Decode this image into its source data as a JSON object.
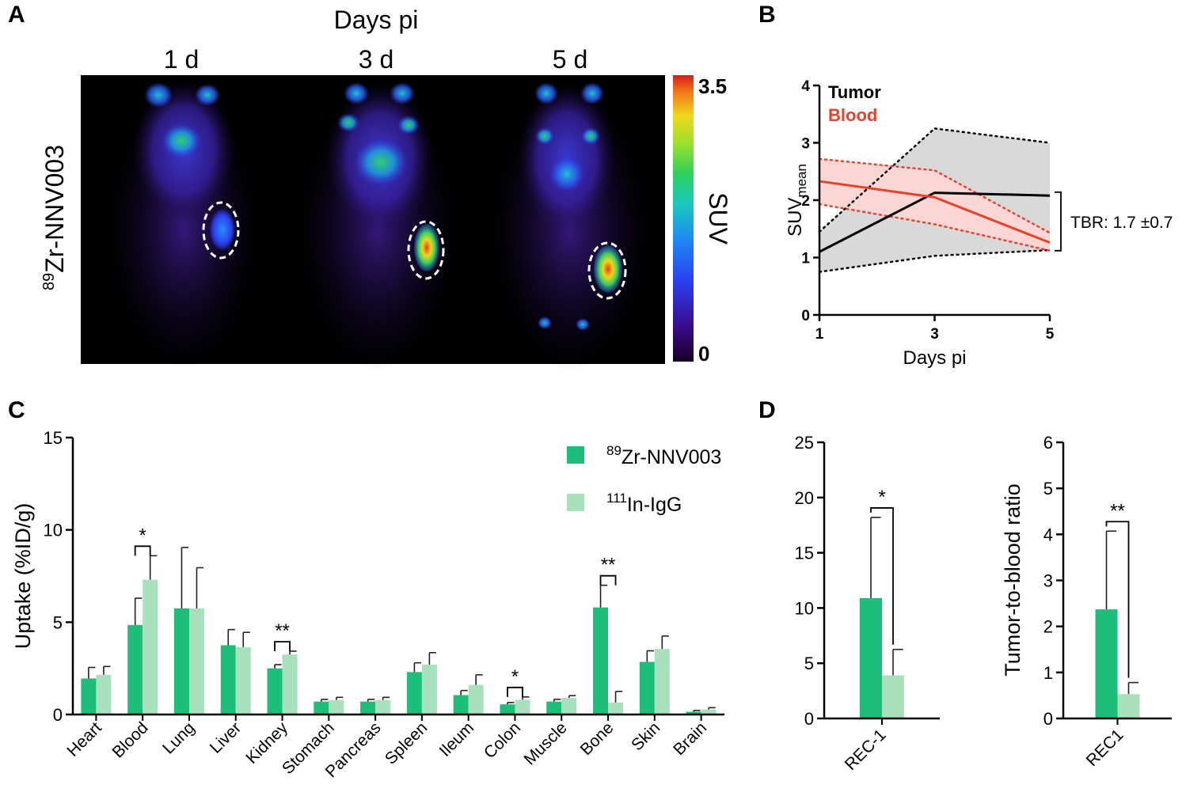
{
  "panels": {
    "a": {
      "letter": "A",
      "header": "Days pi",
      "timepoints": [
        "1 d",
        "3 d",
        "5 d"
      ],
      "tracer_label": "Zr-NNV003",
      "tracer_isotope": "89",
      "colorbar": {
        "label": "SUV",
        "max_label": "3.5",
        "min_label": "0"
      }
    },
    "b": {
      "letter": "B"
    },
    "c": {
      "letter": "C"
    },
    "d": {
      "letter": "D"
    }
  },
  "chart_data": [
    {
      "id": "b",
      "type": "line",
      "xlabel": "Days pi",
      "ylabel_main": "SUV",
      "ylabel_sub": "mean",
      "x": [
        1,
        3,
        5
      ],
      "xticks": [
        "1",
        "3",
        "5"
      ],
      "yticks": [
        "0",
        "1",
        "2",
        "3",
        "4"
      ],
      "ylim": [
        0,
        4
      ],
      "series": [
        {
          "name": "Tumor",
          "color": "#000000",
          "values": [
            1.1,
            2.13,
            2.08
          ],
          "band_lower": [
            0.75,
            1.03,
            1.13
          ],
          "band_upper": [
            1.45,
            3.25,
            3.0
          ],
          "band_color": "#d9d9d9"
        },
        {
          "name": "Blood",
          "color": "#e8412c",
          "values": [
            2.33,
            2.05,
            1.26
          ],
          "band_lower": [
            1.93,
            1.58,
            1.12
          ],
          "band_upper": [
            2.72,
            2.52,
            1.43
          ],
          "band_color": "#fad7d4"
        }
      ],
      "annotation": "TBR: 1.7 ±0.7"
    },
    {
      "id": "c",
      "type": "bar",
      "ylabel": "Uptake (%ID/g)",
      "ylim": [
        0,
        15
      ],
      "yticks": [
        "0",
        "5",
        "10",
        "15"
      ],
      "categories": [
        "Heart",
        "Blood",
        "Lung",
        "Liver",
        "Kidney",
        "Stomach",
        "Pancreas",
        "Spleen",
        "Ileum",
        "Colon",
        "Muscle",
        "Bone",
        "Skin",
        "Brain"
      ],
      "series": [
        {
          "name": "Zr-NNV003",
          "sup": "89",
          "color": "#1dbd7a",
          "values": [
            1.95,
            4.85,
            5.75,
            3.75,
            2.5,
            0.7,
            0.7,
            2.3,
            1.05,
            0.55,
            0.7,
            5.8,
            2.85,
            0.15
          ],
          "errors": [
            0.6,
            1.45,
            3.3,
            0.85,
            0.2,
            0.12,
            0.12,
            0.5,
            0.25,
            0.1,
            0.12,
            1.2,
            0.6,
            0.07
          ]
        },
        {
          "name": "In-IgG",
          "sup": "111",
          "color": "#a9e1bc",
          "values": [
            2.15,
            7.3,
            5.75,
            3.65,
            3.25,
            0.78,
            0.78,
            2.7,
            1.6,
            0.8,
            0.9,
            0.65,
            3.55,
            0.27
          ],
          "errors": [
            0.45,
            1.3,
            2.2,
            0.8,
            0.18,
            0.15,
            0.15,
            0.65,
            0.55,
            0.15,
            0.12,
            0.6,
            0.7,
            0.1
          ]
        }
      ],
      "significance": [
        {
          "category": "Blood",
          "label": "*"
        },
        {
          "category": "Kidney",
          "label": "**"
        },
        {
          "category": "Colon",
          "label": "*"
        },
        {
          "category": "Bone",
          "label": "**"
        }
      ]
    },
    {
      "id": "d1",
      "type": "bar",
      "ylabel": "",
      "ylim": [
        0,
        25
      ],
      "yticks": [
        "0",
        "5",
        "10",
        "15",
        "20",
        "25"
      ],
      "categories": [
        "REC-1"
      ],
      "series": [
        {
          "name": "Zr-NNV003",
          "color": "#1dbd7a",
          "values": [
            10.9
          ],
          "errors": [
            7.3
          ]
        },
        {
          "name": "In-IgG",
          "color": "#a9e1bc",
          "values": [
            3.9
          ],
          "errors": [
            2.35
          ]
        }
      ],
      "significance": [
        {
          "category": "REC-1",
          "label": "*"
        }
      ]
    },
    {
      "id": "d2",
      "type": "bar",
      "ylabel": "Tumor-to-blood ratio",
      "ylim": [
        0,
        6
      ],
      "yticks": [
        "0",
        "1",
        "2",
        "3",
        "4",
        "5",
        "6"
      ],
      "categories": [
        "REC1"
      ],
      "series": [
        {
          "name": "Zr-NNV003",
          "color": "#1dbd7a",
          "values": [
            2.37
          ],
          "errors": [
            1.7
          ]
        },
        {
          "name": "In-IgG",
          "color": "#a9e1bc",
          "values": [
            0.53
          ],
          "errors": [
            0.25
          ]
        }
      ],
      "significance": [
        {
          "category": "REC1",
          "label": "**"
        }
      ]
    }
  ]
}
